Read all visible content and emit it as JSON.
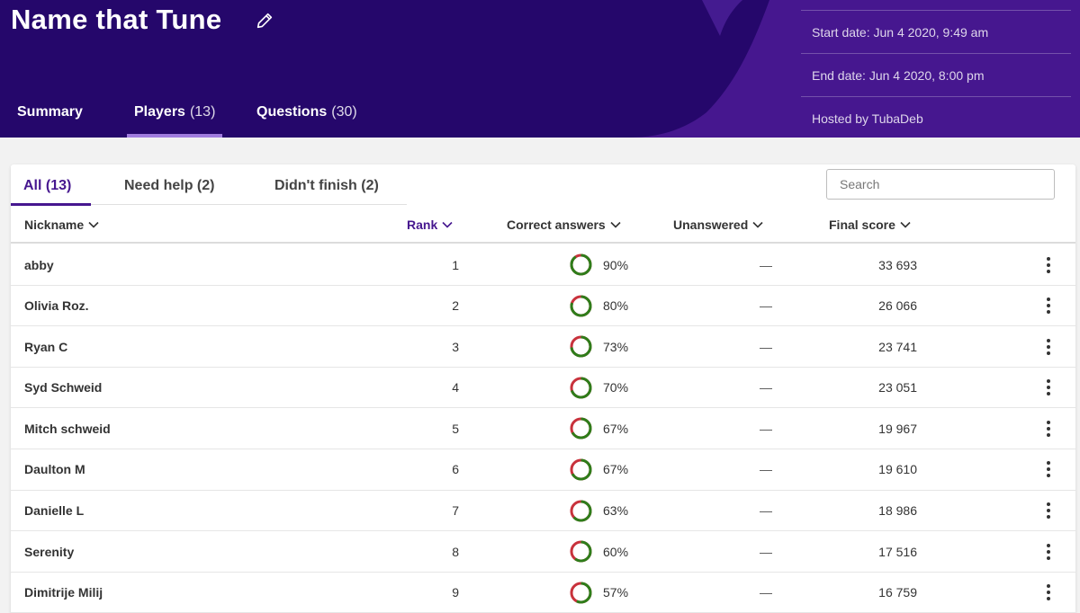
{
  "header": {
    "title": "Name that Tune",
    "tabs": [
      {
        "label": "Summary",
        "count": ""
      },
      {
        "label": "Players",
        "count": "(13)"
      },
      {
        "label": "Questions",
        "count": "(30)"
      }
    ],
    "info": {
      "start": "Start date: Jun 4 2020, 9:49 am",
      "end": "End date: Jun 4 2020, 8:00 pm",
      "host": "Hosted by TubaDeb"
    }
  },
  "filters": {
    "tabs": [
      {
        "label": "All (13)"
      },
      {
        "label": "Need help (2)"
      },
      {
        "label": "Didn't finish (2)"
      }
    ],
    "search_placeholder": "Search"
  },
  "table": {
    "columns": {
      "nickname": "Nickname",
      "rank": "Rank",
      "correct": "Correct answers",
      "unanswered": "Unanswered",
      "score": "Final score"
    },
    "rows": [
      {
        "nickname": "abby",
        "rank": "1",
        "correct": "90%",
        "pct": 0.9,
        "unanswered": "—",
        "score": "33 693"
      },
      {
        "nickname": "Olivia Roz.",
        "rank": "2",
        "correct": "80%",
        "pct": 0.8,
        "unanswered": "—",
        "score": "26 066"
      },
      {
        "nickname": "Ryan C",
        "rank": "3",
        "correct": "73%",
        "pct": 0.73,
        "unanswered": "—",
        "score": "23 741"
      },
      {
        "nickname": "Syd Schweid",
        "rank": "4",
        "correct": "70%",
        "pct": 0.7,
        "unanswered": "—",
        "score": "23 051"
      },
      {
        "nickname": "Mitch schweid",
        "rank": "5",
        "correct": "67%",
        "pct": 0.67,
        "unanswered": "—",
        "score": "19 967"
      },
      {
        "nickname": "Daulton M",
        "rank": "6",
        "correct": "67%",
        "pct": 0.67,
        "unanswered": "—",
        "score": "19 610"
      },
      {
        "nickname": "Danielle L",
        "rank": "7",
        "correct": "63%",
        "pct": 0.63,
        "unanswered": "—",
        "score": "18 986"
      },
      {
        "nickname": "Serenity",
        "rank": "8",
        "correct": "60%",
        "pct": 0.6,
        "unanswered": "—",
        "score": "17 516"
      },
      {
        "nickname": "Dimitrije Milij",
        "rank": "9",
        "correct": "57%",
        "pct": 0.57,
        "unanswered": "—",
        "score": "16 759"
      }
    ]
  },
  "colors": {
    "brand": "#46178f",
    "correct": "#2e7d1a",
    "incorrect": "#c8323c"
  }
}
